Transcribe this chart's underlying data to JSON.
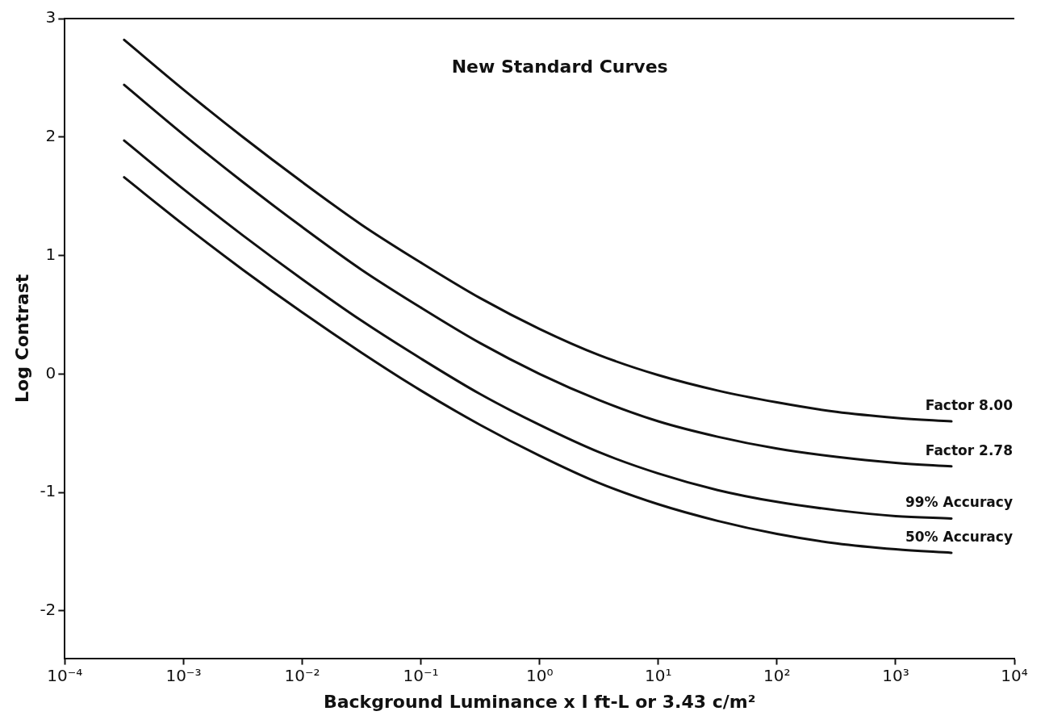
{
  "chart_data": {
    "type": "line",
    "title": "New Standard Curves",
    "xlabel": "Background Luminance x I ft-L or 3.43 c/m²",
    "ylabel": "Log Contrast",
    "log": "x",
    "grid": false,
    "legend": false,
    "marker": "none",
    "line_style": "solid",
    "x": [
      0.000316,
      0.001,
      0.00316,
      0.01,
      0.0316,
      0.1,
      0.316,
      1,
      3.16,
      10,
      31.6,
      100,
      316,
      1000,
      2950
    ],
    "xlim": [
      0.0001,
      10000
    ],
    "xticks": [
      {
        "value": 0.0001,
        "label": "10⁻⁴"
      },
      {
        "value": 0.001,
        "label": "10⁻³"
      },
      {
        "value": 0.01,
        "label": "10⁻²"
      },
      {
        "value": 0.1,
        "label": "10⁻¹"
      },
      {
        "value": 1,
        "label": "10⁰"
      },
      {
        "value": 10,
        "label": "10¹"
      },
      {
        "value": 100,
        "label": "10²"
      },
      {
        "value": 1000,
        "label": "10³"
      },
      {
        "value": 10000,
        "label": "10⁴"
      }
    ],
    "ylim": [
      -2.4,
      3
    ],
    "yticks": [
      3,
      2,
      1,
      0,
      -1,
      -2
    ],
    "series": [
      {
        "name": "Factor 8.00",
        "color": "#111111",
        "values": [
          2.82,
          2.4,
          2.0,
          1.62,
          1.26,
          0.94,
          0.64,
          0.38,
          0.16,
          -0.01,
          -0.14,
          -0.24,
          -0.32,
          -0.37,
          -0.4
        ]
      },
      {
        "name": "Factor 2.78",
        "color": "#111111",
        "values": [
          2.44,
          2.02,
          1.62,
          1.24,
          0.88,
          0.56,
          0.26,
          0.0,
          -0.22,
          -0.4,
          -0.53,
          -0.63,
          -0.7,
          -0.75,
          -0.78
        ]
      },
      {
        "name": "99% Accuracy",
        "color": "#111111",
        "values": [
          1.97,
          1.56,
          1.17,
          0.8,
          0.45,
          0.13,
          -0.17,
          -0.43,
          -0.66,
          -0.84,
          -0.98,
          -1.08,
          -1.15,
          -1.2,
          -1.22
        ]
      },
      {
        "name": "50% Accuracy",
        "color": "#111111",
        "values": [
          1.66,
          1.26,
          0.88,
          0.52,
          0.18,
          -0.14,
          -0.43,
          -0.69,
          -0.92,
          -1.1,
          -1.24,
          -1.35,
          -1.43,
          -1.48,
          -1.51
        ]
      }
    ]
  }
}
